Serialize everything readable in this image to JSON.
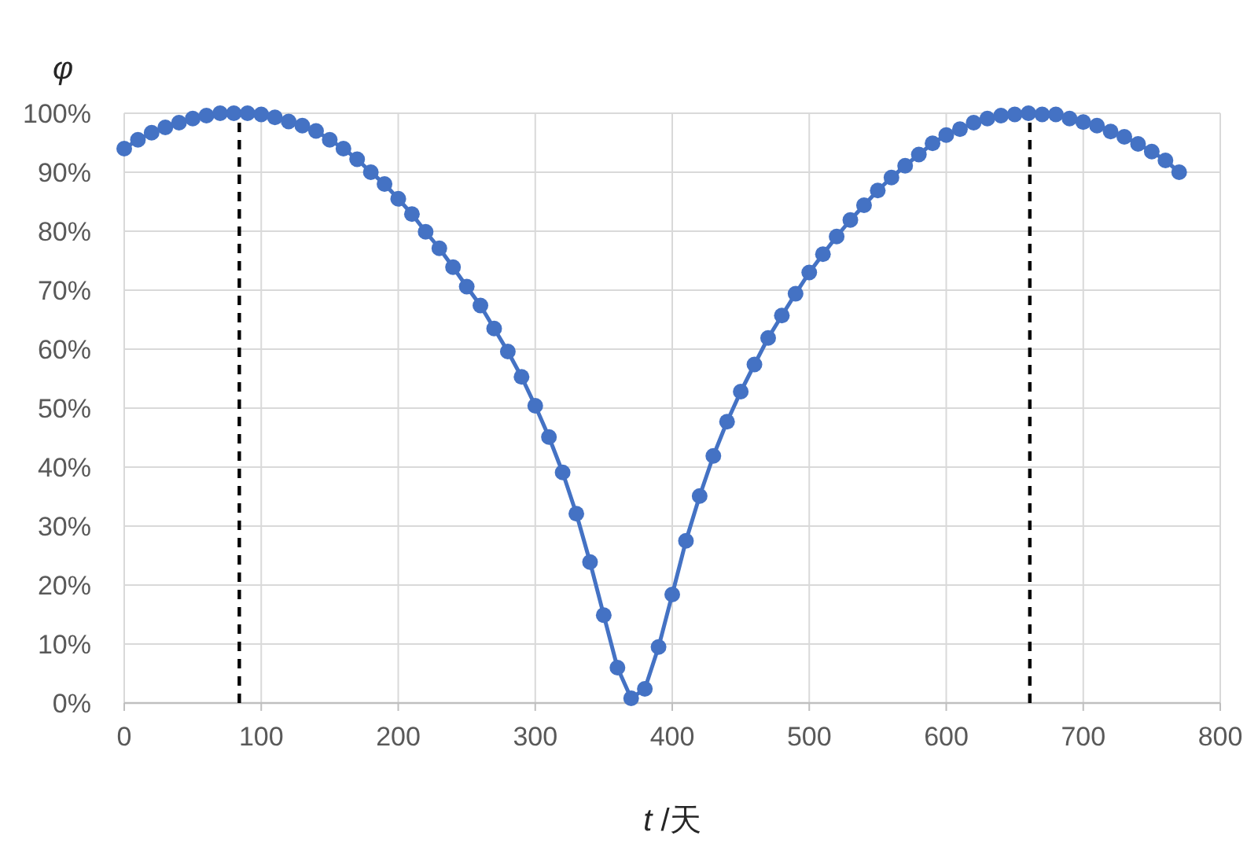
{
  "chart_data": {
    "type": "line",
    "xlabel": "*t* /天",
    "ylabel": "φ",
    "x": [
      0,
      10,
      20,
      30,
      40,
      50,
      60,
      70,
      80,
      90,
      100,
      110,
      120,
      130,
      140,
      150,
      160,
      170,
      180,
      190,
      200,
      210,
      220,
      230,
      240,
      250,
      260,
      270,
      280,
      290,
      300,
      310,
      320,
      330,
      340,
      350,
      360,
      370,
      380,
      390,
      400,
      410,
      420,
      430,
      440,
      450,
      460,
      470,
      480,
      490,
      500,
      510,
      520,
      530,
      540,
      550,
      560,
      570,
      580,
      590,
      600,
      610,
      620,
      630,
      640,
      650,
      660,
      670,
      680,
      690,
      700,
      710,
      720,
      730,
      740,
      750,
      760,
      770
    ],
    "series": [
      {
        "color": "#4472c4",
        "values": [
          94.0,
          95.5,
          96.7,
          97.6,
          98.4,
          99.1,
          99.6,
          100,
          100,
          100,
          99.8,
          99.3,
          98.6,
          97.9,
          97.0,
          95.5,
          94.0,
          92.2,
          90.0,
          88.0,
          85.5,
          82.9,
          79.9,
          77.1,
          73.9,
          70.6,
          67.4,
          63.5,
          59.6,
          55.3,
          50.4,
          45.1,
          39.1,
          32.1,
          23.9,
          14.9,
          6.0,
          0.8,
          2.4,
          9.5,
          18.4,
          27.5,
          35.1,
          41.9,
          47.7,
          52.8,
          57.4,
          61.9,
          65.7,
          69.4,
          73.0,
          76.1,
          79.1,
          81.9,
          84.4,
          86.9,
          89.1,
          91.1,
          93.0,
          94.9,
          96.3,
          97.3,
          98.4,
          99.1,
          99.6,
          99.8,
          100,
          99.8,
          99.8,
          99.1,
          98.5,
          97.9,
          96.9,
          96.0,
          94.8,
          93.5,
          92.0,
          90.0
        ]
      }
    ],
    "xlim": [
      0,
      800
    ],
    "xticks": [
      0,
      100,
      200,
      300,
      400,
      500,
      600,
      700,
      800
    ],
    "ylim": [
      0,
      100
    ],
    "yticks": [
      {
        "value": 0,
        "label": "0%"
      },
      {
        "value": 10,
        "label": "10%"
      },
      {
        "value": 20,
        "label": "20%"
      },
      {
        "value": 30,
        "label": "30%"
      },
      {
        "value": 40,
        "label": "40%"
      },
      {
        "value": 50,
        "label": "50%"
      },
      {
        "value": 60,
        "label": "60%"
      },
      {
        "value": 70,
        "label": "70%"
      },
      {
        "value": 80,
        "label": "80%"
      },
      {
        "value": 90,
        "label": "90%"
      },
      {
        "value": 100,
        "label": "100%"
      }
    ],
    "ref_lines": [
      {
        "axis": "x",
        "value": 84,
        "color": "#000000",
        "line_style": "dashed"
      },
      {
        "axis": "x",
        "value": 661,
        "color": "#000000",
        "line_style": "dashed"
      }
    ],
    "grid": true,
    "marker": "circle",
    "line_style": "solid"
  }
}
